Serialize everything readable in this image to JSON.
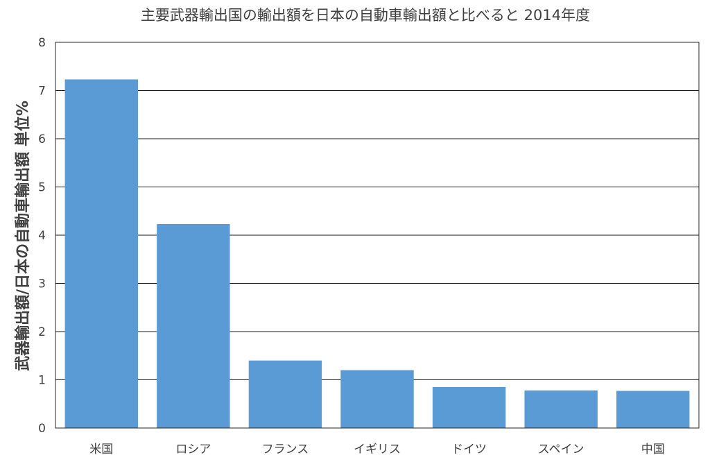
{
  "chart_data": {
    "type": "bar",
    "title": "主要武器輸出国の輸出額を日本の自動車輸出額と比べると 2014年度",
    "xlabel": "",
    "ylabel": "武器輸出額/日本の自動車輸出額 単位%",
    "categories": [
      "米国",
      "ロシア",
      "フランス",
      "イギリス",
      "ドイツ",
      "スペイン",
      "中国"
    ],
    "values": [
      7.23,
      4.23,
      1.4,
      1.2,
      0.85,
      0.78,
      0.77
    ],
    "ylim": [
      0,
      8
    ],
    "yticks": [
      0,
      1,
      2,
      3,
      4,
      5,
      6,
      7,
      8
    ],
    "grid": true,
    "bar_color": "#5b9bd5",
    "legend": "none"
  }
}
